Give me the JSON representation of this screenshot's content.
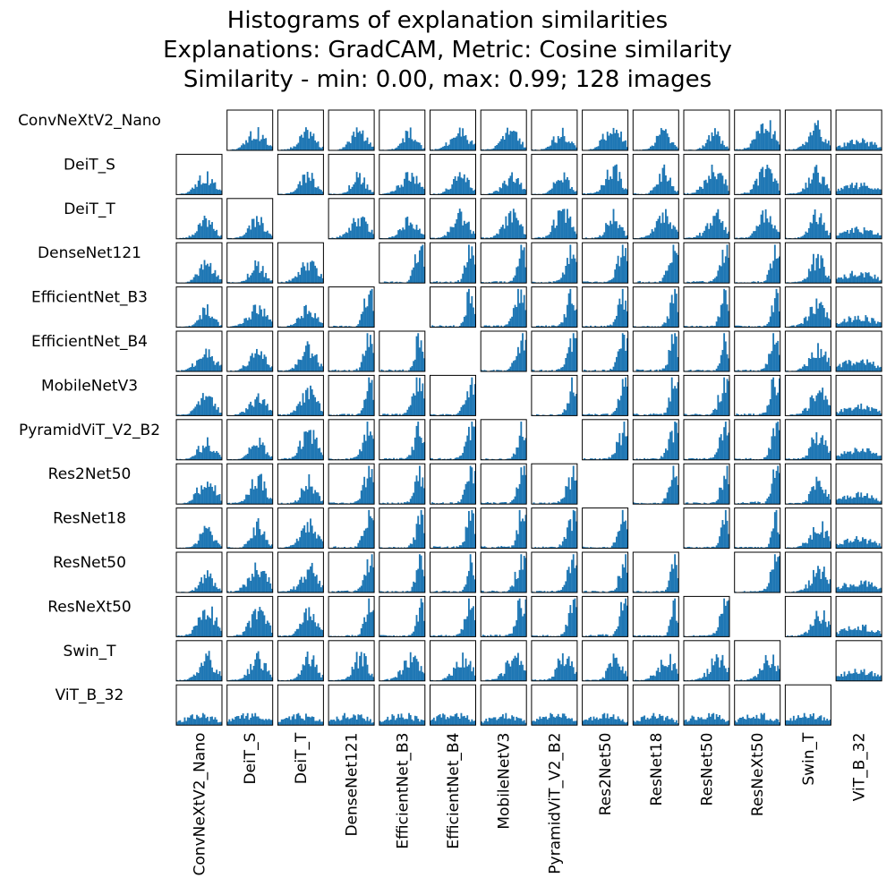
{
  "chart_data": {
    "type": "histogram-matrix",
    "title_lines": [
      "Histograms of explanation similarities",
      "Explanations: GradCAM, Metric: Cosine similarity",
      "Similarity - min: 0.00, max: 0.99; 128 images"
    ],
    "models": [
      "ConvNeXtV2_Nano",
      "DeiT_S",
      "DeiT_T",
      "DenseNet121",
      "EfficientNet_B3",
      "EfficientNet_B4",
      "MobileNetV3",
      "PyramidViT_V2_B2",
      "Res2Net50",
      "ResNet18",
      "ResNet50",
      "ResNeXt50",
      "Swin_T",
      "ViT_B_32"
    ],
    "diagonal_empty": true,
    "bar_color": "#1f77b4",
    "bins": 30,
    "x_range": [
      0.0,
      0.99
    ],
    "grid": false,
    "axes_ticks": false
  }
}
